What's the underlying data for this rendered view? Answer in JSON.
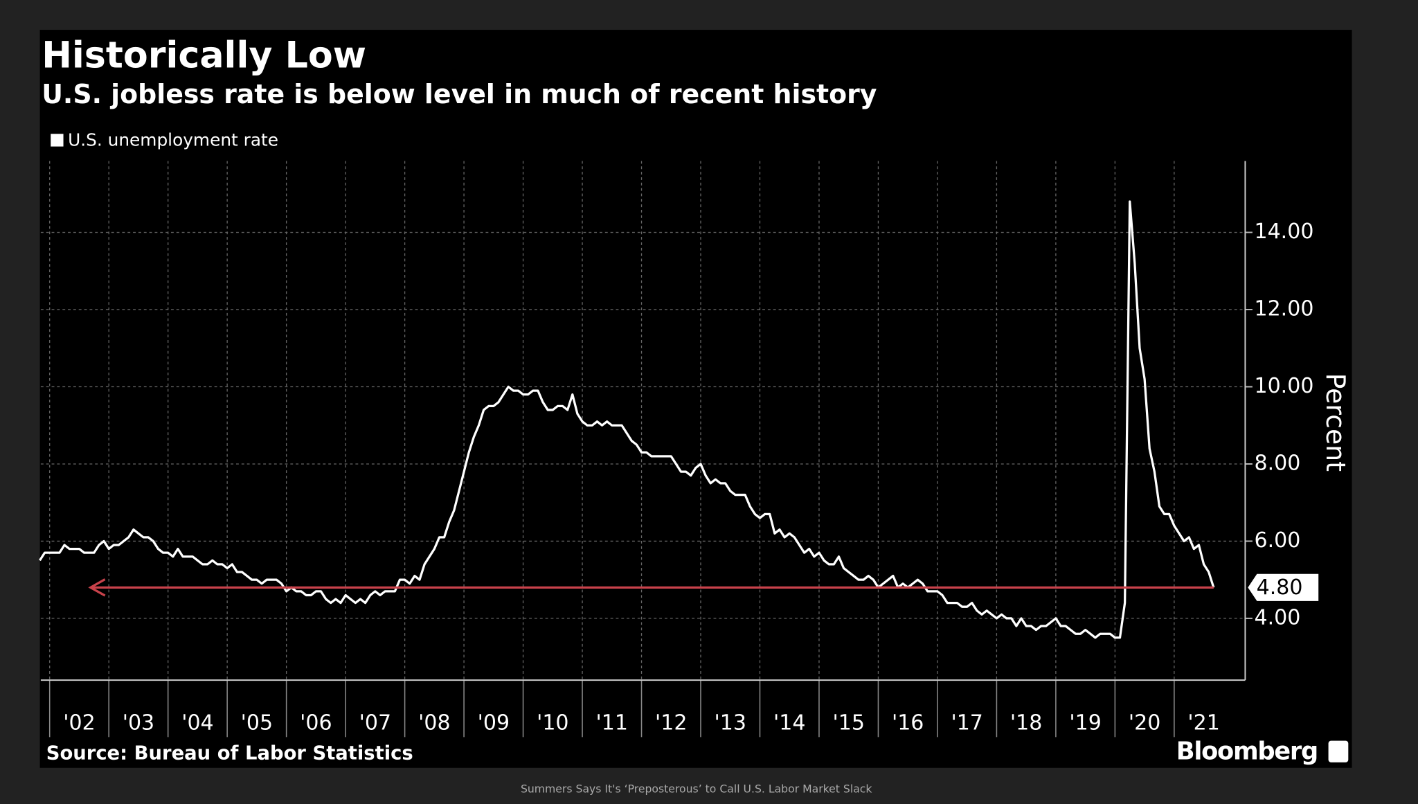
{
  "chart_data": {
    "type": "line",
    "title": "Historically Low",
    "subtitle": "U.S. jobless rate is below level in much of recent history",
    "y_label": "Percent",
    "source": "Source: Bureau of Labor Statistics",
    "brand": "Bloomberg",
    "series": [
      {
        "name": "U.S. unemployment rate",
        "color": "#ffffff",
        "x": [
          "2001-11",
          "2001-12",
          "2002-01",
          "2002-02",
          "2002-03",
          "2002-04",
          "2002-05",
          "2002-06",
          "2002-07",
          "2002-08",
          "2002-09",
          "2002-10",
          "2002-11",
          "2002-12",
          "2003-01",
          "2003-02",
          "2003-03",
          "2003-04",
          "2003-05",
          "2003-06",
          "2003-07",
          "2003-08",
          "2003-09",
          "2003-10",
          "2003-11",
          "2003-12",
          "2004-01",
          "2004-02",
          "2004-03",
          "2004-04",
          "2004-05",
          "2004-06",
          "2004-07",
          "2004-08",
          "2004-09",
          "2004-10",
          "2004-11",
          "2004-12",
          "2005-01",
          "2005-02",
          "2005-03",
          "2005-04",
          "2005-05",
          "2005-06",
          "2005-07",
          "2005-08",
          "2005-09",
          "2005-10",
          "2005-11",
          "2005-12",
          "2006-01",
          "2006-02",
          "2006-03",
          "2006-04",
          "2006-05",
          "2006-06",
          "2006-07",
          "2006-08",
          "2006-09",
          "2006-10",
          "2006-11",
          "2006-12",
          "2007-01",
          "2007-02",
          "2007-03",
          "2007-04",
          "2007-05",
          "2007-06",
          "2007-07",
          "2007-08",
          "2007-09",
          "2007-10",
          "2007-11",
          "2007-12",
          "2008-01",
          "2008-02",
          "2008-03",
          "2008-04",
          "2008-05",
          "2008-06",
          "2008-07",
          "2008-08",
          "2008-09",
          "2008-10",
          "2008-11",
          "2008-12",
          "2009-01",
          "2009-02",
          "2009-03",
          "2009-04",
          "2009-05",
          "2009-06",
          "2009-07",
          "2009-08",
          "2009-09",
          "2009-10",
          "2009-11",
          "2009-12",
          "2010-01",
          "2010-02",
          "2010-03",
          "2010-04",
          "2010-05",
          "2010-06",
          "2010-07",
          "2010-08",
          "2010-09",
          "2010-10",
          "2010-11",
          "2010-12",
          "2011-01",
          "2011-02",
          "2011-03",
          "2011-04",
          "2011-05",
          "2011-06",
          "2011-07",
          "2011-08",
          "2011-09",
          "2011-10",
          "2011-11",
          "2011-12",
          "2012-01",
          "2012-02",
          "2012-03",
          "2012-04",
          "2012-05",
          "2012-06",
          "2012-07",
          "2012-08",
          "2012-09",
          "2012-10",
          "2012-11",
          "2012-12",
          "2013-01",
          "2013-02",
          "2013-03",
          "2013-04",
          "2013-05",
          "2013-06",
          "2013-07",
          "2013-08",
          "2013-09",
          "2013-10",
          "2013-11",
          "2013-12",
          "2014-01",
          "2014-02",
          "2014-03",
          "2014-04",
          "2014-05",
          "2014-06",
          "2014-07",
          "2014-08",
          "2014-09",
          "2014-10",
          "2014-11",
          "2014-12",
          "2015-01",
          "2015-02",
          "2015-03",
          "2015-04",
          "2015-05",
          "2015-06",
          "2015-07",
          "2015-08",
          "2015-09",
          "2015-10",
          "2015-11",
          "2015-12",
          "2016-01",
          "2016-02",
          "2016-03",
          "2016-04",
          "2016-05",
          "2016-06",
          "2016-07",
          "2016-08",
          "2016-09",
          "2016-10",
          "2016-11",
          "2016-12",
          "2017-01",
          "2017-02",
          "2017-03",
          "2017-04",
          "2017-05",
          "2017-06",
          "2017-07",
          "2017-08",
          "2017-09",
          "2017-10",
          "2017-11",
          "2017-12",
          "2018-01",
          "2018-02",
          "2018-03",
          "2018-04",
          "2018-05",
          "2018-06",
          "2018-07",
          "2018-08",
          "2018-09",
          "2018-10",
          "2018-11",
          "2018-12",
          "2019-01",
          "2019-02",
          "2019-03",
          "2019-04",
          "2019-05",
          "2019-06",
          "2019-07",
          "2019-08",
          "2019-09",
          "2019-10",
          "2019-11",
          "2019-12",
          "2020-01",
          "2020-02",
          "2020-03",
          "2020-04",
          "2020-05",
          "2020-06",
          "2020-07",
          "2020-08",
          "2020-09",
          "2020-10",
          "2020-11",
          "2020-12",
          "2021-01",
          "2021-02",
          "2021-03",
          "2021-04",
          "2021-05",
          "2021-06",
          "2021-07",
          "2021-08",
          "2021-09"
        ],
        "values": [
          5.5,
          5.7,
          5.7,
          5.7,
          5.7,
          5.9,
          5.8,
          5.8,
          5.8,
          5.7,
          5.7,
          5.7,
          5.9,
          6.0,
          5.8,
          5.9,
          5.9,
          6.0,
          6.1,
          6.3,
          6.2,
          6.1,
          6.1,
          6.0,
          5.8,
          5.7,
          5.7,
          5.6,
          5.8,
          5.6,
          5.6,
          5.6,
          5.5,
          5.4,
          5.4,
          5.5,
          5.4,
          5.4,
          5.3,
          5.4,
          5.2,
          5.2,
          5.1,
          5.0,
          5.0,
          4.9,
          5.0,
          5.0,
          5.0,
          4.9,
          4.7,
          4.8,
          4.7,
          4.7,
          4.6,
          4.6,
          4.7,
          4.7,
          4.5,
          4.4,
          4.5,
          4.4,
          4.6,
          4.5,
          4.4,
          4.5,
          4.4,
          4.6,
          4.7,
          4.6,
          4.7,
          4.7,
          4.7,
          5.0,
          5.0,
          4.9,
          5.1,
          5.0,
          5.4,
          5.6,
          5.8,
          6.1,
          6.1,
          6.5,
          6.8,
          7.3,
          7.8,
          8.3,
          8.7,
          9.0,
          9.4,
          9.5,
          9.5,
          9.6,
          9.8,
          10.0,
          9.9,
          9.9,
          9.8,
          9.8,
          9.9,
          9.9,
          9.6,
          9.4,
          9.4,
          9.5,
          9.5,
          9.4,
          9.8,
          9.3,
          9.1,
          9.0,
          9.0,
          9.1,
          9.0,
          9.1,
          9.0,
          9.0,
          9.0,
          8.8,
          8.6,
          8.5,
          8.3,
          8.3,
          8.2,
          8.2,
          8.2,
          8.2,
          8.2,
          8.0,
          7.8,
          7.8,
          7.7,
          7.9,
          8.0,
          7.7,
          7.5,
          7.6,
          7.5,
          7.5,
          7.3,
          7.2,
          7.2,
          7.2,
          6.9,
          6.7,
          6.6,
          6.7,
          6.7,
          6.2,
          6.3,
          6.1,
          6.2,
          6.1,
          5.9,
          5.7,
          5.8,
          5.6,
          5.7,
          5.5,
          5.4,
          5.4,
          5.6,
          5.3,
          5.2,
          5.1,
          5.0,
          5.0,
          5.1,
          5.0,
          4.8,
          4.9,
          5.0,
          5.1,
          4.8,
          4.9,
          4.8,
          4.9,
          5.0,
          4.9,
          4.7,
          4.7,
          4.7,
          4.6,
          4.4,
          4.4,
          4.4,
          4.3,
          4.3,
          4.4,
          4.2,
          4.1,
          4.2,
          4.1,
          4.0,
          4.1,
          4.0,
          4.0,
          3.8,
          4.0,
          3.8,
          3.8,
          3.7,
          3.8,
          3.8,
          3.9,
          4.0,
          3.8,
          3.8,
          3.7,
          3.6,
          3.6,
          3.7,
          3.6,
          3.5,
          3.6,
          3.6,
          3.6,
          3.5,
          3.5,
          4.4,
          14.8,
          13.2,
          11.0,
          10.2,
          8.4,
          7.8,
          6.9,
          6.7,
          6.7,
          6.4,
          6.2,
          6.0,
          6.1,
          5.8,
          5.9,
          5.4,
          5.2,
          4.8
        ]
      }
    ],
    "xlim": [
      2001.85,
      2022.2
    ],
    "xticks": [
      {
        "value": 2002,
        "label": "'02"
      },
      {
        "value": 2003,
        "label": "'03"
      },
      {
        "value": 2004,
        "label": "'04"
      },
      {
        "value": 2005,
        "label": "'05"
      },
      {
        "value": 2006,
        "label": "'06"
      },
      {
        "value": 2007,
        "label": "'07"
      },
      {
        "value": 2008,
        "label": "'08"
      },
      {
        "value": 2009,
        "label": "'09"
      },
      {
        "value": 2010,
        "label": "'10"
      },
      {
        "value": 2011,
        "label": "'11"
      },
      {
        "value": 2012,
        "label": "'12"
      },
      {
        "value": 2013,
        "label": "'13"
      },
      {
        "value": 2014,
        "label": "'14"
      },
      {
        "value": 2015,
        "label": "'15"
      },
      {
        "value": 2016,
        "label": "'16"
      },
      {
        "value": 2017,
        "label": "'17"
      },
      {
        "value": 2018,
        "label": "'18"
      },
      {
        "value": 2019,
        "label": "'19"
      },
      {
        "value": 2020,
        "label": "'20"
      },
      {
        "value": 2021,
        "label": "'21"
      }
    ],
    "ylim": [
      2.4,
      15.85
    ],
    "yticks": [
      {
        "value": 4,
        "label": "4.00"
      },
      {
        "value": 6,
        "label": "6.00"
      },
      {
        "value": 8,
        "label": "8.00"
      },
      {
        "value": 10,
        "label": "10.00"
      },
      {
        "value": 12,
        "label": "12.00"
      },
      {
        "value": 14,
        "label": "14.00"
      }
    ],
    "annotation": {
      "value": 4.8,
      "label": "4.80",
      "color": "#c8424b"
    },
    "grid": true,
    "legend": "top-left"
  },
  "caption": "Summers Says It's ‘Preposterous’ to Call U.S. Labor Market Slack"
}
